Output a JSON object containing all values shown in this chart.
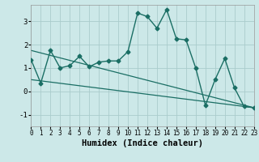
{
  "xlabel": "Humidex (Indice chaleur)",
  "background_color": "#cce8e8",
  "grid_color": "#aacccc",
  "line_color": "#1a6e64",
  "xlim": [
    0,
    23
  ],
  "ylim": [
    -1.5,
    3.7
  ],
  "yticks": [
    -1,
    0,
    1,
    2,
    3
  ],
  "xticks": [
    0,
    1,
    2,
    3,
    4,
    5,
    6,
    7,
    8,
    9,
    10,
    11,
    12,
    13,
    14,
    15,
    16,
    17,
    18,
    19,
    20,
    21,
    22,
    23
  ],
  "main_x": [
    0,
    1,
    2,
    3,
    4,
    5,
    6,
    7,
    8,
    9,
    10,
    11,
    12,
    13,
    14,
    15,
    16,
    17,
    18,
    19,
    20,
    21,
    22,
    23
  ],
  "main_y": [
    1.35,
    0.35,
    1.75,
    1.0,
    1.1,
    1.5,
    1.05,
    1.25,
    1.3,
    1.3,
    1.7,
    3.35,
    3.2,
    2.7,
    3.5,
    2.25,
    2.2,
    1.0,
    -0.6,
    0.5,
    1.4,
    0.15,
    -0.65,
    -0.7
  ],
  "line1_x": [
    0,
    23
  ],
  "line1_y": [
    1.75,
    -0.7
  ],
  "line2_x": [
    0,
    23
  ],
  "line2_y": [
    0.5,
    -0.7
  ]
}
